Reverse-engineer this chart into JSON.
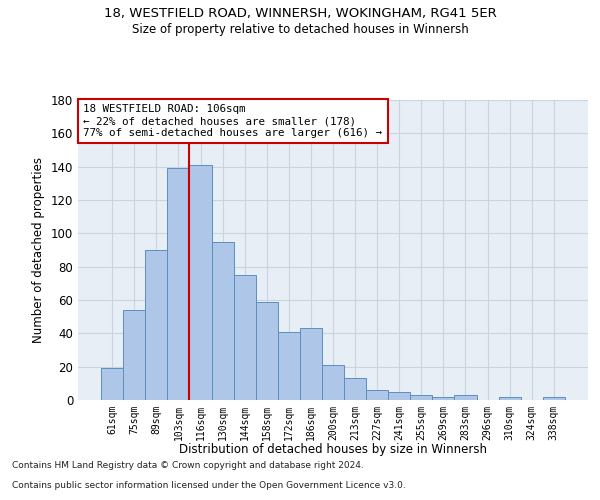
{
  "title1": "18, WESTFIELD ROAD, WINNERSH, WOKINGHAM, RG41 5ER",
  "title2": "Size of property relative to detached houses in Winnersh",
  "xlabel": "Distribution of detached houses by size in Winnersh",
  "ylabel": "Number of detached properties",
  "bar_labels": [
    "61sqm",
    "75sqm",
    "89sqm",
    "103sqm",
    "116sqm",
    "130sqm",
    "144sqm",
    "158sqm",
    "172sqm",
    "186sqm",
    "200sqm",
    "213sqm",
    "227sqm",
    "241sqm",
    "255sqm",
    "269sqm",
    "283sqm",
    "296sqm",
    "310sqm",
    "324sqm",
    "338sqm"
  ],
  "bar_values": [
    19,
    54,
    90,
    139,
    141,
    95,
    75,
    59,
    41,
    43,
    21,
    13,
    6,
    5,
    3,
    2,
    3,
    0,
    2,
    0,
    2
  ],
  "bar_color": "#aec6e8",
  "bar_edge_color": "#5a8fc0",
  "vline_index": 3.5,
  "vline_color": "#cc0000",
  "annotation_line1": "18 WESTFIELD ROAD: 106sqm",
  "annotation_line2": "← 22% of detached houses are smaller (178)",
  "annotation_line3": "77% of semi-detached houses are larger (616) →",
  "annotation_box_color": "#ffffff",
  "annotation_box_edge": "#cc0000",
  "ylim": [
    0,
    180
  ],
  "yticks": [
    0,
    20,
    40,
    60,
    80,
    100,
    120,
    140,
    160,
    180
  ],
  "grid_color": "#c8d4e0",
  "bg_color": "#e8eef5",
  "footer1": "Contains HM Land Registry data © Crown copyright and database right 2024.",
  "footer2": "Contains public sector information licensed under the Open Government Licence v3.0."
}
